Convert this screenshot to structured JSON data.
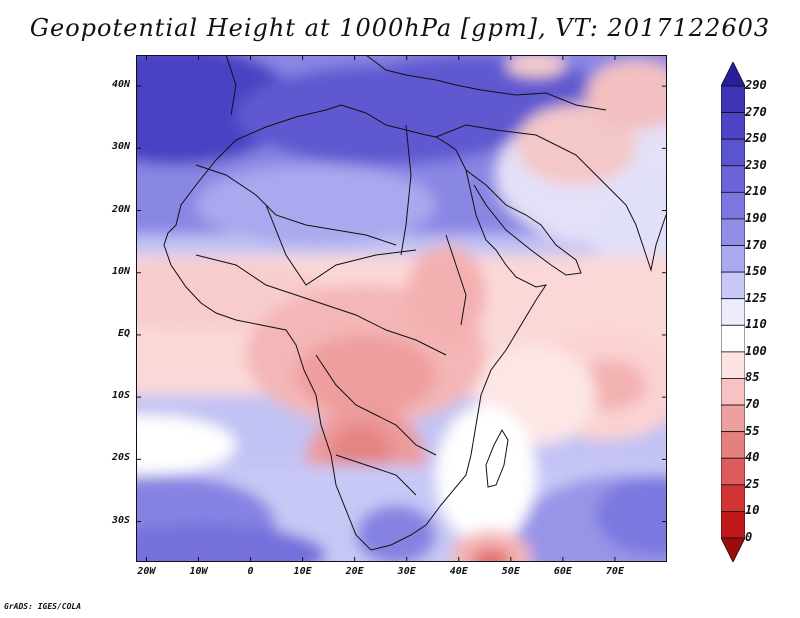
{
  "title": "Geopotential Height at 1000hPa [gpm], VT: 2017122603",
  "credit": "GrADS: IGES/COLA",
  "lat_labels": [
    "40N",
    "30N",
    "20N",
    "10N",
    "EQ",
    "10S",
    "20S",
    "30S"
  ],
  "lat_values": [
    40,
    30,
    20,
    10,
    0,
    -10,
    -20,
    -30
  ],
  "lon_labels": [
    "20W",
    "10W",
    "0",
    "10E",
    "20E",
    "30E",
    "40E",
    "50E",
    "60E",
    "70E"
  ],
  "lon_values": [
    -20,
    -10,
    0,
    10,
    20,
    30,
    40,
    50,
    60,
    70
  ],
  "extent": {
    "lon_min": -22,
    "lon_max": 80,
    "lat_min": -36.5,
    "lat_max": 45
  },
  "colorbar": {
    "labels": [
      "290",
      "270",
      "250",
      "230",
      "210",
      "190",
      "170",
      "150",
      "125",
      "110",
      "100",
      "85",
      "70",
      "55",
      "40",
      "25",
      "10",
      "0"
    ],
    "colors": [
      "#2a1e9c",
      "#3c34b4",
      "#4c44c4",
      "#5a54d0",
      "#6a64d8",
      "#7c78e0",
      "#918ee6",
      "#aaa8ee",
      "#c8c8f6",
      "#ececfc",
      "#ffffff",
      "#fce2e2",
      "#f6c2c2",
      "#eea0a0",
      "#e48080",
      "#dc5c5c",
      "#d23434",
      "#c01818",
      "#9c0c0c"
    ]
  }
}
